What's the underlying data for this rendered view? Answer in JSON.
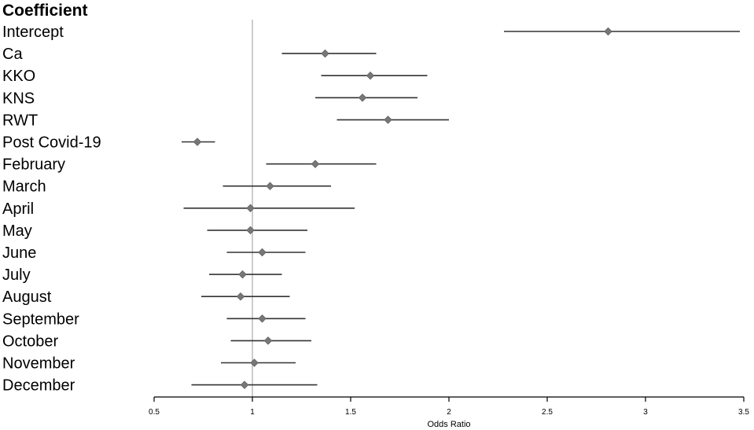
{
  "chart_data": {
    "type": "forest",
    "column_heading": "Coefficient",
    "xlabel": "Odds Ratio",
    "xlim": [
      0.5,
      3.5
    ],
    "xticks": [
      "0.5",
      "1",
      "1.5",
      "2",
      "2.5",
      "3",
      "3.5"
    ],
    "reference_line": 1,
    "grid": false,
    "colors": {
      "marker": "#777777",
      "ci_line": "#333333",
      "reference_line": "#b0b0b0",
      "axis": "#000000"
    },
    "rows": [
      {
        "label": "Intercept",
        "estimate": 2.81,
        "lower": 2.28,
        "upper": 3.48
      },
      {
        "label": "Ca",
        "estimate": 1.37,
        "lower": 1.15,
        "upper": 1.63
      },
      {
        "label": "KKO",
        "estimate": 1.6,
        "lower": 1.35,
        "upper": 1.89
      },
      {
        "label": "KNS",
        "estimate": 1.56,
        "lower": 1.32,
        "upper": 1.84
      },
      {
        "label": "RWT",
        "estimate": 1.69,
        "lower": 1.43,
        "upper": 2.0
      },
      {
        "label": "Post Covid-19",
        "estimate": 0.72,
        "lower": 0.64,
        "upper": 0.81
      },
      {
        "label": "February",
        "estimate": 1.32,
        "lower": 1.07,
        "upper": 1.63
      },
      {
        "label": "March",
        "estimate": 1.09,
        "lower": 0.85,
        "upper": 1.4
      },
      {
        "label": "April",
        "estimate": 0.99,
        "lower": 0.65,
        "upper": 1.52
      },
      {
        "label": "May",
        "estimate": 0.99,
        "lower": 0.77,
        "upper": 1.28
      },
      {
        "label": "June",
        "estimate": 1.05,
        "lower": 0.87,
        "upper": 1.27
      },
      {
        "label": "July",
        "estimate": 0.95,
        "lower": 0.78,
        "upper": 1.15
      },
      {
        "label": "August",
        "estimate": 0.94,
        "lower": 0.74,
        "upper": 1.19
      },
      {
        "label": "September",
        "estimate": 1.05,
        "lower": 0.87,
        "upper": 1.27
      },
      {
        "label": "October",
        "estimate": 1.08,
        "lower": 0.89,
        "upper": 1.3
      },
      {
        "label": "November",
        "estimate": 1.01,
        "lower": 0.84,
        "upper": 1.22
      },
      {
        "label": "December",
        "estimate": 0.96,
        "lower": 0.69,
        "upper": 1.33
      }
    ]
  }
}
